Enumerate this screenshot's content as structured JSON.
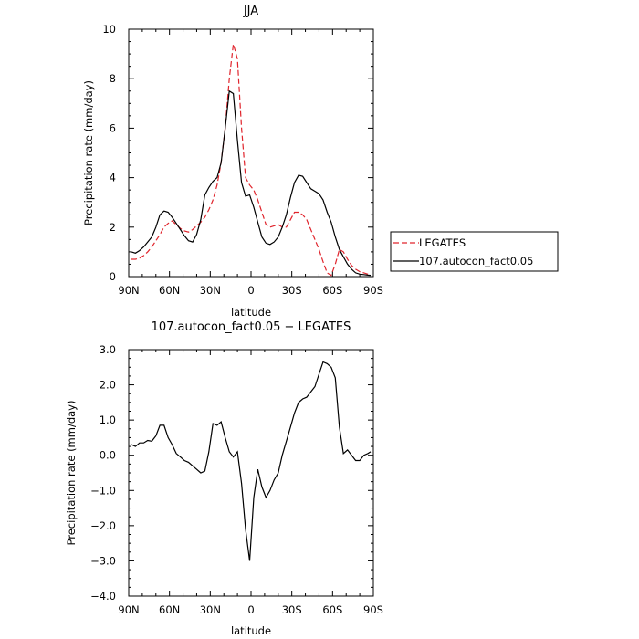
{
  "colors": {
    "legates": "#e0242c",
    "model": "#000000"
  },
  "legend": {
    "entries": [
      "LEGATES",
      "107.autocon_fact0.05"
    ]
  },
  "chart_data": [
    {
      "type": "line",
      "title": "JJA",
      "xlabel": "latitude",
      "ylabel": "Precipitation rate (mm/day)",
      "xlim": [
        90,
        -90
      ],
      "ylim": [
        0,
        10
      ],
      "xticks": [
        90,
        60,
        30,
        0,
        -30,
        -60,
        -90
      ],
      "xticklabels": [
        "90N",
        "60N",
        "30N",
        "0",
        "30S",
        "60S",
        "90S"
      ],
      "yticks": [
        0,
        2,
        4,
        6,
        8,
        10
      ],
      "yticklabels": [
        "0",
        "2",
        "4",
        "6",
        "8",
        "10"
      ],
      "legend_position": "right",
      "series": [
        {
          "name": "LEGATES",
          "style": "dashed",
          "x": [
            88,
            85,
            82,
            79,
            76,
            73,
            70,
            67,
            64,
            61,
            58,
            55,
            52,
            49,
            46,
            43,
            40,
            37,
            34,
            31,
            28,
            25,
            22,
            19,
            16,
            13,
            10,
            7,
            4,
            1,
            -2,
            -5,
            -8,
            -11,
            -14,
            -17,
            -20,
            -23,
            -26,
            -29,
            -32,
            -35,
            -38,
            -41,
            -44,
            -47,
            -50,
            -53,
            -56,
            -59,
            -62,
            -65,
            -68,
            -71,
            -74,
            -77,
            -80,
            -83,
            -86,
            -88
          ],
          "y": [
            0.7,
            0.7,
            0.75,
            0.85,
            1.0,
            1.2,
            1.45,
            1.7,
            2.0,
            2.15,
            2.25,
            2.1,
            1.95,
            1.85,
            1.8,
            1.9,
            2.05,
            2.2,
            2.4,
            2.7,
            3.1,
            3.7,
            4.6,
            6.0,
            8.0,
            9.4,
            8.8,
            6.0,
            4.0,
            3.7,
            3.5,
            3.1,
            2.6,
            2.1,
            2.0,
            2.05,
            2.1,
            2.0,
            2.0,
            2.3,
            2.6,
            2.6,
            2.5,
            2.3,
            1.9,
            1.5,
            1.1,
            0.6,
            0.15,
            0.05,
            0.5,
            1.1,
            1.0,
            0.7,
            0.45,
            0.3,
            0.2,
            0.15,
            0.1,
            0.08
          ]
        },
        {
          "name": "107.autocon_fact0.05",
          "style": "solid",
          "x": [
            88,
            85,
            82,
            79,
            76,
            73,
            70,
            67,
            64,
            61,
            58,
            55,
            52,
            49,
            46,
            43,
            40,
            37,
            34,
            31,
            28,
            25,
            22,
            19,
            16,
            13,
            10,
            7,
            4,
            1,
            -2,
            -5,
            -8,
            -11,
            -14,
            -17,
            -20,
            -23,
            -26,
            -29,
            -32,
            -35,
            -38,
            -41,
            -44,
            -47,
            -50,
            -53,
            -56,
            -59,
            -62,
            -65,
            -68,
            -71,
            -74,
            -77,
            -80,
            -83,
            -86,
            -88
          ],
          "y": [
            1.0,
            0.95,
            1.05,
            1.2,
            1.4,
            1.6,
            2.0,
            2.5,
            2.65,
            2.6,
            2.4,
            2.15,
            1.9,
            1.65,
            1.45,
            1.4,
            1.7,
            2.3,
            3.3,
            3.6,
            3.85,
            4.0,
            4.6,
            6.0,
            7.5,
            7.4,
            5.5,
            3.8,
            3.25,
            3.3,
            2.8,
            2.2,
            1.6,
            1.35,
            1.3,
            1.4,
            1.6,
            2.0,
            2.5,
            3.2,
            3.8,
            4.1,
            4.05,
            3.8,
            3.55,
            3.45,
            3.35,
            3.1,
            2.6,
            2.2,
            1.6,
            1.1,
            0.8,
            0.5,
            0.3,
            0.15,
            0.1,
            0.08,
            0.06,
            0.05
          ]
        }
      ]
    },
    {
      "type": "line",
      "title": "107.autocon_fact0.05 − LEGATES",
      "xlabel": "latitude",
      "ylabel": "Precipitation rate (mm/day)",
      "xlim": [
        90,
        -90
      ],
      "ylim": [
        -4,
        3
      ],
      "xticks": [
        90,
        60,
        30,
        0,
        -30,
        -60,
        -90
      ],
      "xticklabels": [
        "90N",
        "60N",
        "30N",
        "0",
        "30S",
        "60S",
        "90S"
      ],
      "yticks": [
        -4,
        -3,
        -2,
        -1,
        0,
        1,
        2,
        3
      ],
      "yticklabels": [
        "−4.0",
        "−3.0",
        "−2.0",
        "−1.0",
        "0.0",
        "1.0",
        "2.0",
        "3.0"
      ],
      "series": [
        {
          "style": "solid",
          "x": [
            88,
            85,
            82,
            79,
            76,
            73,
            70,
            67,
            64,
            61,
            58,
            55,
            52,
            49,
            46,
            43,
            40,
            37,
            34,
            31,
            28,
            25,
            22,
            19,
            16,
            13,
            10,
            7,
            4,
            1,
            -2,
            -5,
            -8,
            -11,
            -14,
            -17,
            -20,
            -23,
            -26,
            -29,
            -32,
            -35,
            -38,
            -41,
            -44,
            -47,
            -50,
            -53,
            -56,
            -59,
            -62,
            -65,
            -68,
            -71,
            -74,
            -77,
            -80,
            -83,
            -86,
            -88
          ],
          "y": [
            0.3,
            0.25,
            0.35,
            0.35,
            0.42,
            0.4,
            0.55,
            0.85,
            0.85,
            0.5,
            0.3,
            0.05,
            -0.05,
            -0.15,
            -0.2,
            -0.3,
            -0.4,
            -0.5,
            -0.45,
            0.1,
            0.9,
            0.85,
            0.95,
            0.5,
            0.1,
            -0.05,
            0.1,
            -0.8,
            -2.1,
            -3.0,
            -1.2,
            -0.4,
            -0.9,
            -1.2,
            -1.0,
            -0.7,
            -0.5,
            0.0,
            0.4,
            0.8,
            1.2,
            1.5,
            1.6,
            1.65,
            1.8,
            1.95,
            2.3,
            2.65,
            2.6,
            2.5,
            2.2,
            0.8,
            0.05,
            0.15,
            0.0,
            -0.15,
            -0.15,
            0.0,
            0.05,
            0.1
          ]
        }
      ]
    }
  ]
}
